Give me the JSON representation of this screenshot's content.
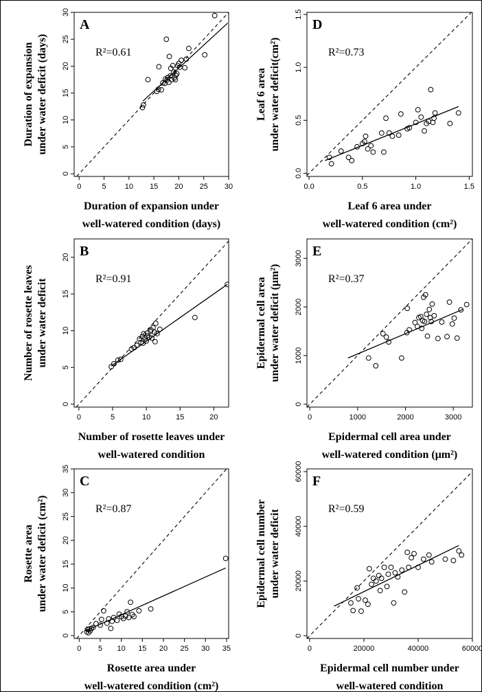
{
  "chart_data": [
    {
      "type": "scatter",
      "panel": "A",
      "r2": "R²=0.61",
      "ylabel": [
        "Duration of expansion",
        "under water deficit (days)"
      ],
      "xlabel": [
        "Duration of expansion under",
        "well-watered condition (days)"
      ],
      "xlim": [
        -1,
        30
      ],
      "ylim": [
        -0.5,
        30
      ],
      "xticks": [
        0,
        5,
        10,
        15,
        20,
        25,
        30
      ],
      "yticks": [
        0,
        5,
        10,
        15,
        20,
        25,
        30
      ],
      "reference_line": "1:1 dashed",
      "fit_line": [
        [
          12.8,
          13.5
        ],
        [
          29.8,
          28.0
        ]
      ],
      "points": [
        [
          12.7,
          12.3
        ],
        [
          12.9,
          12.8
        ],
        [
          13.8,
          17.5
        ],
        [
          15.6,
          15.3
        ],
        [
          15.9,
          15.7
        ],
        [
          16.0,
          19.9
        ],
        [
          16.5,
          15.6
        ],
        [
          16.8,
          16.9
        ],
        [
          17.2,
          16.8
        ],
        [
          17.3,
          17.6
        ],
        [
          17.5,
          25.0
        ],
        [
          17.6,
          17.4
        ],
        [
          17.8,
          17.9
        ],
        [
          18.0,
          17.0
        ],
        [
          18.1,
          21.8
        ],
        [
          18.3,
          18.2
        ],
        [
          18.4,
          19.6
        ],
        [
          18.6,
          17.5
        ],
        [
          18.8,
          20.1
        ],
        [
          19.0,
          18.9
        ],
        [
          19.1,
          17.8
        ],
        [
          19.3,
          17.5
        ],
        [
          19.4,
          18.3
        ],
        [
          19.6,
          18.6
        ],
        [
          19.8,
          20.1
        ],
        [
          20.0,
          20.5
        ],
        [
          20.2,
          19.8
        ],
        [
          20.5,
          21.1
        ],
        [
          21.2,
          19.7
        ],
        [
          21.5,
          21.3
        ],
        [
          22.0,
          23.3
        ],
        [
          25.2,
          22.1
        ],
        [
          27.2,
          29.4
        ]
      ]
    },
    {
      "type": "scatter",
      "panel": "B",
      "r2": "R²=0.91",
      "ylabel": [
        "Number of rosette leaves",
        "under water deficit"
      ],
      "xlabel": [
        "Number of rosette leaves under",
        "well-watered condition"
      ],
      "xlim": [
        -0.7,
        22.2
      ],
      "ylim": [
        -0.4,
        22.5
      ],
      "xticks": [
        0,
        5,
        10,
        15,
        20
      ],
      "yticks": [
        0,
        5,
        10,
        15,
        20
      ],
      "reference_line": "1:1 dashed",
      "fit_line": [
        [
          4.8,
          5.2
        ],
        [
          22.0,
          16.3
        ]
      ],
      "points": [
        [
          4.8,
          5.1
        ],
        [
          5.2,
          5.5
        ],
        [
          5.8,
          6.0
        ],
        [
          6.2,
          6.1
        ],
        [
          7.8,
          7.5
        ],
        [
          8.2,
          7.7
        ],
        [
          8.6,
          8.0
        ],
        [
          9.0,
          8.9
        ],
        [
          9.2,
          8.4
        ],
        [
          9.4,
          9.2
        ],
        [
          9.5,
          8.3
        ],
        [
          9.6,
          9.6
        ],
        [
          9.8,
          9.0
        ],
        [
          10.0,
          8.6
        ],
        [
          10.1,
          9.3
        ],
        [
          10.2,
          9.7
        ],
        [
          10.4,
          9.1
        ],
        [
          10.6,
          9.9
        ],
        [
          10.7,
          10.1
        ],
        [
          10.8,
          9.0
        ],
        [
          11.0,
          10.4
        ],
        [
          11.2,
          9.8
        ],
        [
          11.3,
          8.5
        ],
        [
          11.4,
          11.0
        ],
        [
          11.6,
          9.6
        ],
        [
          12.0,
          10.2
        ],
        [
          17.2,
          11.8
        ],
        [
          22.0,
          16.3
        ]
      ]
    },
    {
      "type": "scatter",
      "panel": "C",
      "r2": "R²=0.87",
      "ylabel": [
        "Rosette area",
        "under water deficit (cm²)"
      ],
      "xlabel": [
        "Rosette area  under",
        "well-watered condition (cm²)"
      ],
      "xlim": [
        -1.2,
        35.5
      ],
      "ylim": [
        -0.6,
        35
      ],
      "xticks": [
        0,
        5,
        10,
        15,
        20,
        25,
        30,
        35
      ],
      "yticks": [
        0,
        5,
        10,
        15,
        20,
        25,
        30,
        35
      ],
      "reference_line": "1:1 dashed",
      "fit_line": [
        [
          1.5,
          1.0
        ],
        [
          34.8,
          14.2
        ]
      ],
      "points": [
        [
          1.8,
          0.8
        ],
        [
          2.0,
          1.3
        ],
        [
          2.2,
          0.6
        ],
        [
          2.4,
          1.4
        ],
        [
          2.6,
          1.0
        ],
        [
          2.9,
          1.5
        ],
        [
          3.3,
          1.7
        ],
        [
          4.0,
          2.5
        ],
        [
          5.0,
          2.2
        ],
        [
          5.3,
          3.4
        ],
        [
          5.8,
          5.2
        ],
        [
          6.6,
          2.6
        ],
        [
          7.0,
          3.5
        ],
        [
          7.5,
          1.5
        ],
        [
          7.8,
          3.0
        ],
        [
          8.2,
          3.8
        ],
        [
          9.0,
          3.2
        ],
        [
          9.5,
          4.5
        ],
        [
          10.0,
          4.0
        ],
        [
          10.5,
          3.6
        ],
        [
          11.0,
          4.1
        ],
        [
          11.4,
          5.0
        ],
        [
          11.8,
          3.8
        ],
        [
          12.2,
          7.0
        ],
        [
          12.6,
          4.4
        ],
        [
          13.0,
          4.0
        ],
        [
          14.2,
          5.2
        ],
        [
          17.0,
          5.6
        ],
        [
          34.8,
          16.2
        ]
      ]
    },
    {
      "type": "scatter",
      "panel": "D",
      "r2": "R²=0.73",
      "ylabel": [
        "Leaf 6 area",
        "under water deficit(cm²)"
      ],
      "xlabel": [
        "Leaf 6 area under",
        "well-watered condition (cm²)"
      ],
      "xlim": [
        -0.02,
        1.53
      ],
      "ylim": [
        -0.03,
        1.52
      ],
      "xticks": [
        "0.0",
        "0.5",
        "1.0",
        "1.5"
      ],
      "yticks": [
        "0.0",
        "0.5",
        "1.0",
        "1.5"
      ],
      "reference_line": "1:1 dashed",
      "fit_line": [
        [
          0.15,
          0.12
        ],
        [
          1.4,
          0.63
        ]
      ],
      "points": [
        [
          0.19,
          0.15
        ],
        [
          0.21,
          0.09
        ],
        [
          0.3,
          0.21
        ],
        [
          0.37,
          0.15
        ],
        [
          0.4,
          0.12
        ],
        [
          0.45,
          0.25
        ],
        [
          0.5,
          0.28
        ],
        [
          0.52,
          0.3
        ],
        [
          0.53,
          0.35
        ],
        [
          0.55,
          0.23
        ],
        [
          0.58,
          0.26
        ],
        [
          0.6,
          0.2
        ],
        [
          0.68,
          0.38
        ],
        [
          0.7,
          0.2
        ],
        [
          0.72,
          0.52
        ],
        [
          0.75,
          0.38
        ],
        [
          0.78,
          0.35
        ],
        [
          0.84,
          0.36
        ],
        [
          0.86,
          0.56
        ],
        [
          0.92,
          0.42
        ],
        [
          0.94,
          0.43
        ],
        [
          1.0,
          0.48
        ],
        [
          1.02,
          0.6
        ],
        [
          1.05,
          0.53
        ],
        [
          1.08,
          0.4
        ],
        [
          1.1,
          0.47
        ],
        [
          1.12,
          0.49
        ],
        [
          1.14,
          0.79
        ],
        [
          1.16,
          0.48
        ],
        [
          1.17,
          0.52
        ],
        [
          1.18,
          0.57
        ],
        [
          1.32,
          0.47
        ],
        [
          1.4,
          0.57
        ]
      ]
    },
    {
      "type": "scatter",
      "panel": "E",
      "r2": "R²=0.37",
      "ylabel": [
        "Epidermal cell area",
        "under water deficit (μm²)"
      ],
      "xlabel": [
        "Epidermal cell area under",
        "well-watered condition (μm²)"
      ],
      "xlim": [
        -60,
        3400
      ],
      "ylim": [
        -60,
        3400
      ],
      "xticks": [
        0,
        1000,
        2000,
        3000
      ],
      "yticks": [
        0,
        1000,
        2000,
        3000
      ],
      "reference_line": "1:1 dashed",
      "fit_line": [
        [
          800,
          950
        ],
        [
          3200,
          1950
        ]
      ],
      "points": [
        [
          1230,
          950
        ],
        [
          1380,
          790
        ],
        [
          1530,
          1450
        ],
        [
          1600,
          1380
        ],
        [
          1650,
          1280
        ],
        [
          1920,
          950
        ],
        [
          2030,
          1470
        ],
        [
          2040,
          1970
        ],
        [
          2080,
          1530
        ],
        [
          2200,
          1680
        ],
        [
          2250,
          1600
        ],
        [
          2280,
          1780
        ],
        [
          2320,
          1800
        ],
        [
          2340,
          1560
        ],
        [
          2360,
          1720
        ],
        [
          2380,
          2200
        ],
        [
          2400,
          1700
        ],
        [
          2420,
          2250
        ],
        [
          2440,
          1850
        ],
        [
          2460,
          1400
        ],
        [
          2500,
          1950
        ],
        [
          2520,
          1780
        ],
        [
          2540,
          1700
        ],
        [
          2560,
          2060
        ],
        [
          2600,
          1820
        ],
        [
          2680,
          1350
        ],
        [
          2760,
          1690
        ],
        [
          2870,
          1390
        ],
        [
          2920,
          2100
        ],
        [
          2980,
          1650
        ],
        [
          3020,
          1770
        ],
        [
          3080,
          1360
        ],
        [
          3160,
          1940
        ],
        [
          3280,
          2050
        ]
      ]
    },
    {
      "type": "scatter",
      "panel": "F",
      "r2": "R²=0.59",
      "ylabel": [
        "Epidermal cell number",
        "under water deficit"
      ],
      "xlabel": [
        "Epidermal cell number  under",
        "well-watered condition"
      ],
      "xlim": [
        -1000,
        60000
      ],
      "ylim": [
        -1000,
        61000
      ],
      "xticks": [
        0,
        20000,
        40000,
        60000
      ],
      "yticks": [
        0,
        20000,
        40000,
        60000
      ],
      "reference_line": "1:1 dashed",
      "fit_line": [
        [
          9000,
          10800
        ],
        [
          55000,
          33000
        ]
      ],
      "points": [
        [
          15200,
          12000
        ],
        [
          16000,
          9200
        ],
        [
          17500,
          17500
        ],
        [
          18000,
          13500
        ],
        [
          19000,
          9000
        ],
        [
          20500,
          13000
        ],
        [
          21500,
          11500
        ],
        [
          22000,
          24500
        ],
        [
          22800,
          18800
        ],
        [
          23500,
          21000
        ],
        [
          24500,
          20000
        ],
        [
          25500,
          22000
        ],
        [
          26000,
          16500
        ],
        [
          26500,
          21000
        ],
        [
          27500,
          25000
        ],
        [
          28500,
          18000
        ],
        [
          29000,
          22500
        ],
        [
          30000,
          25000
        ],
        [
          31000,
          12000
        ],
        [
          31500,
          23000
        ],
        [
          32500,
          21500
        ],
        [
          34000,
          24000
        ],
        [
          35000,
          16000
        ],
        [
          36000,
          30500
        ],
        [
          36500,
          25000
        ],
        [
          37500,
          28500
        ],
        [
          38500,
          30000
        ],
        [
          40000,
          25000
        ],
        [
          42000,
          28000
        ],
        [
          44000,
          29500
        ],
        [
          45000,
          27000
        ],
        [
          50000,
          28000
        ],
        [
          53000,
          27500
        ],
        [
          55000,
          31000
        ],
        [
          56000,
          29500
        ]
      ]
    }
  ]
}
